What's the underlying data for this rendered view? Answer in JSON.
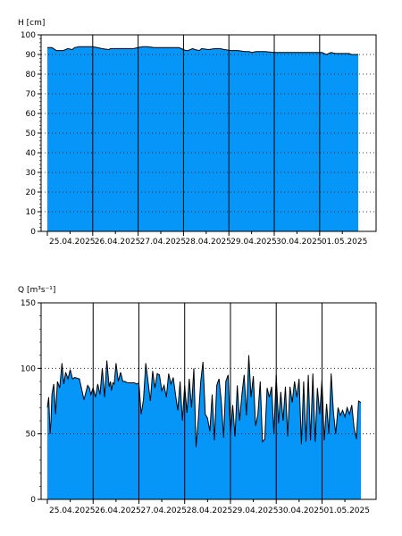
{
  "chart_data": [
    {
      "type": "area",
      "ylabel": "H [cm]",
      "ylim": [
        0,
        100
      ],
      "yticks": [
        0,
        10,
        20,
        30,
        40,
        50,
        60,
        70,
        80,
        90,
        100
      ],
      "grid": true,
      "fill_color": "#0596F7",
      "line_color": "#000000",
      "xlim": [
        0,
        6.85
      ],
      "x_day_boundaries": [
        0,
        1,
        2,
        3,
        4,
        5,
        6
      ],
      "categories": [
        "25.04.2025",
        "26.04.2025",
        "27.04.2025",
        "28.04.2025",
        "29.04.2025",
        "30.04.2025",
        "01.05.2025"
      ],
      "series": [
        {
          "x": [
            0.0,
            0.1,
            0.2,
            0.35,
            0.45,
            0.55,
            0.6,
            0.7,
            0.8,
            1.0,
            1.1,
            1.2,
            1.35,
            1.4,
            1.5,
            1.7,
            1.9,
            2.0,
            2.1,
            2.2,
            2.35,
            2.5,
            2.7,
            2.9,
            3.0,
            3.05,
            3.1,
            3.2,
            3.25,
            3.35,
            3.4,
            3.55,
            3.7,
            3.8,
            3.9,
            4.05,
            4.2,
            4.35,
            4.45,
            4.5,
            4.6,
            4.8,
            5.0,
            5.2,
            5.4,
            5.6,
            5.75,
            5.85,
            5.95,
            6.0,
            6.05,
            6.15,
            6.25,
            6.35,
            6.5,
            6.65,
            6.7,
            6.85
          ],
          "values": [
            93.5,
            93.5,
            92,
            92,
            93,
            92.5,
            93.5,
            94,
            94,
            94,
            93.5,
            93,
            92.5,
            93,
            93,
            93,
            93,
            93.5,
            94,
            94,
            93.5,
            93.5,
            93.5,
            93.5,
            92.5,
            92,
            92,
            93,
            92.5,
            92,
            93,
            92.5,
            93,
            93,
            92.5,
            92,
            92,
            91.5,
            91.5,
            91,
            91.5,
            91.5,
            91,
            91,
            91,
            91,
            91,
            91,
            91,
            91,
            91,
            90,
            91,
            90.5,
            90.5,
            90.5,
            90,
            90
          ]
        }
      ]
    },
    {
      "type": "area",
      "ylabel": "Q [m³s⁻¹]",
      "ylim": [
        0,
        150
      ],
      "yticks": [
        0,
        50,
        100,
        150
      ],
      "grid": true,
      "fill_color": "#0596F7",
      "line_color": "#000000",
      "xlim": [
        0,
        6.85
      ],
      "x_day_boundaries": [
        0,
        1,
        2,
        3,
        4,
        5,
        6
      ],
      "categories": [
        "25.04.2025",
        "26.04.2025",
        "27.04.2025",
        "28.04.2025",
        "29.04.2025",
        "30.04.2025",
        "01.05.2025"
      ],
      "series": [
        {
          "x": [
            0.0,
            0.03,
            0.06,
            0.08,
            0.1,
            0.14,
            0.18,
            0.22,
            0.27,
            0.32,
            0.36,
            0.4,
            0.45,
            0.5,
            0.55,
            0.6,
            0.7,
            0.8,
            0.88,
            0.92,
            0.95,
            1.0,
            1.05,
            1.1,
            1.15,
            1.2,
            1.25,
            1.3,
            1.35,
            1.38,
            1.4,
            1.43,
            1.46,
            1.5,
            1.55,
            1.6,
            1.65,
            1.7,
            1.75,
            1.8,
            1.85,
            1.9,
            1.95,
            2.0,
            2.05,
            2.1,
            2.15,
            2.2,
            2.25,
            2.3,
            2.35,
            2.4,
            2.45,
            2.5,
            2.55,
            2.6,
            2.65,
            2.7,
            2.75,
            2.8,
            2.85,
            2.9,
            2.95,
            3.0,
            3.05,
            3.1,
            3.15,
            3.2,
            3.25,
            3.3,
            3.35,
            3.4,
            3.45,
            3.5,
            3.55,
            3.6,
            3.65,
            3.7,
            3.75,
            3.8,
            3.85,
            3.9,
            3.95,
            4.0,
            4.05,
            4.1,
            4.15,
            4.2,
            4.25,
            4.3,
            4.35,
            4.4,
            4.45,
            4.5,
            4.55,
            4.6,
            4.65,
            4.7,
            4.75,
            4.8,
            4.85,
            4.9,
            4.95,
            5.0,
            5.05,
            5.1,
            5.15,
            5.2,
            5.25,
            5.3,
            5.35,
            5.4,
            5.45,
            5.5,
            5.55,
            5.6,
            5.65,
            5.7,
            5.75,
            5.8,
            5.85,
            5.9,
            5.95,
            6.0,
            6.05,
            6.1,
            6.15,
            6.2,
            6.25,
            6.3,
            6.35,
            6.4,
            6.45,
            6.5,
            6.55,
            6.6,
            6.65,
            6.7,
            6.75,
            6.8,
            6.85
          ],
          "values": [
            70,
            78,
            50,
            60,
            80,
            88,
            65,
            90,
            85,
            104,
            88,
            97,
            92,
            99,
            92,
            93,
            92,
            76,
            87,
            85,
            80,
            85,
            78,
            88,
            80,
            100,
            78,
            106,
            86,
            90,
            83,
            89,
            88,
            104,
            90,
            97,
            90,
            90,
            89,
            89,
            89,
            89,
            88,
            89,
            65,
            76,
            104,
            90,
            75,
            98,
            85,
            96,
            95,
            83,
            87,
            78,
            96,
            88,
            93,
            80,
            68,
            90,
            60,
            87,
            66,
            92,
            70,
            100,
            40,
            62,
            90,
            105,
            65,
            62,
            52,
            80,
            45,
            87,
            92,
            75,
            47,
            90,
            95,
            50,
            72,
            48,
            87,
            60,
            80,
            95,
            64,
            110,
            78,
            94,
            56,
            65,
            90,
            44,
            46,
            85,
            78,
            86,
            50,
            95,
            58,
            82,
            60,
            86,
            48,
            86,
            74,
            90,
            78,
            92,
            42,
            90,
            44,
            95,
            45,
            96,
            44,
            85,
            65,
            91,
            45,
            73,
            50,
            96,
            66,
            50,
            70,
            64,
            68,
            63,
            70,
            65,
            72,
            55,
            46,
            75,
            74
          ]
        }
      ]
    }
  ]
}
